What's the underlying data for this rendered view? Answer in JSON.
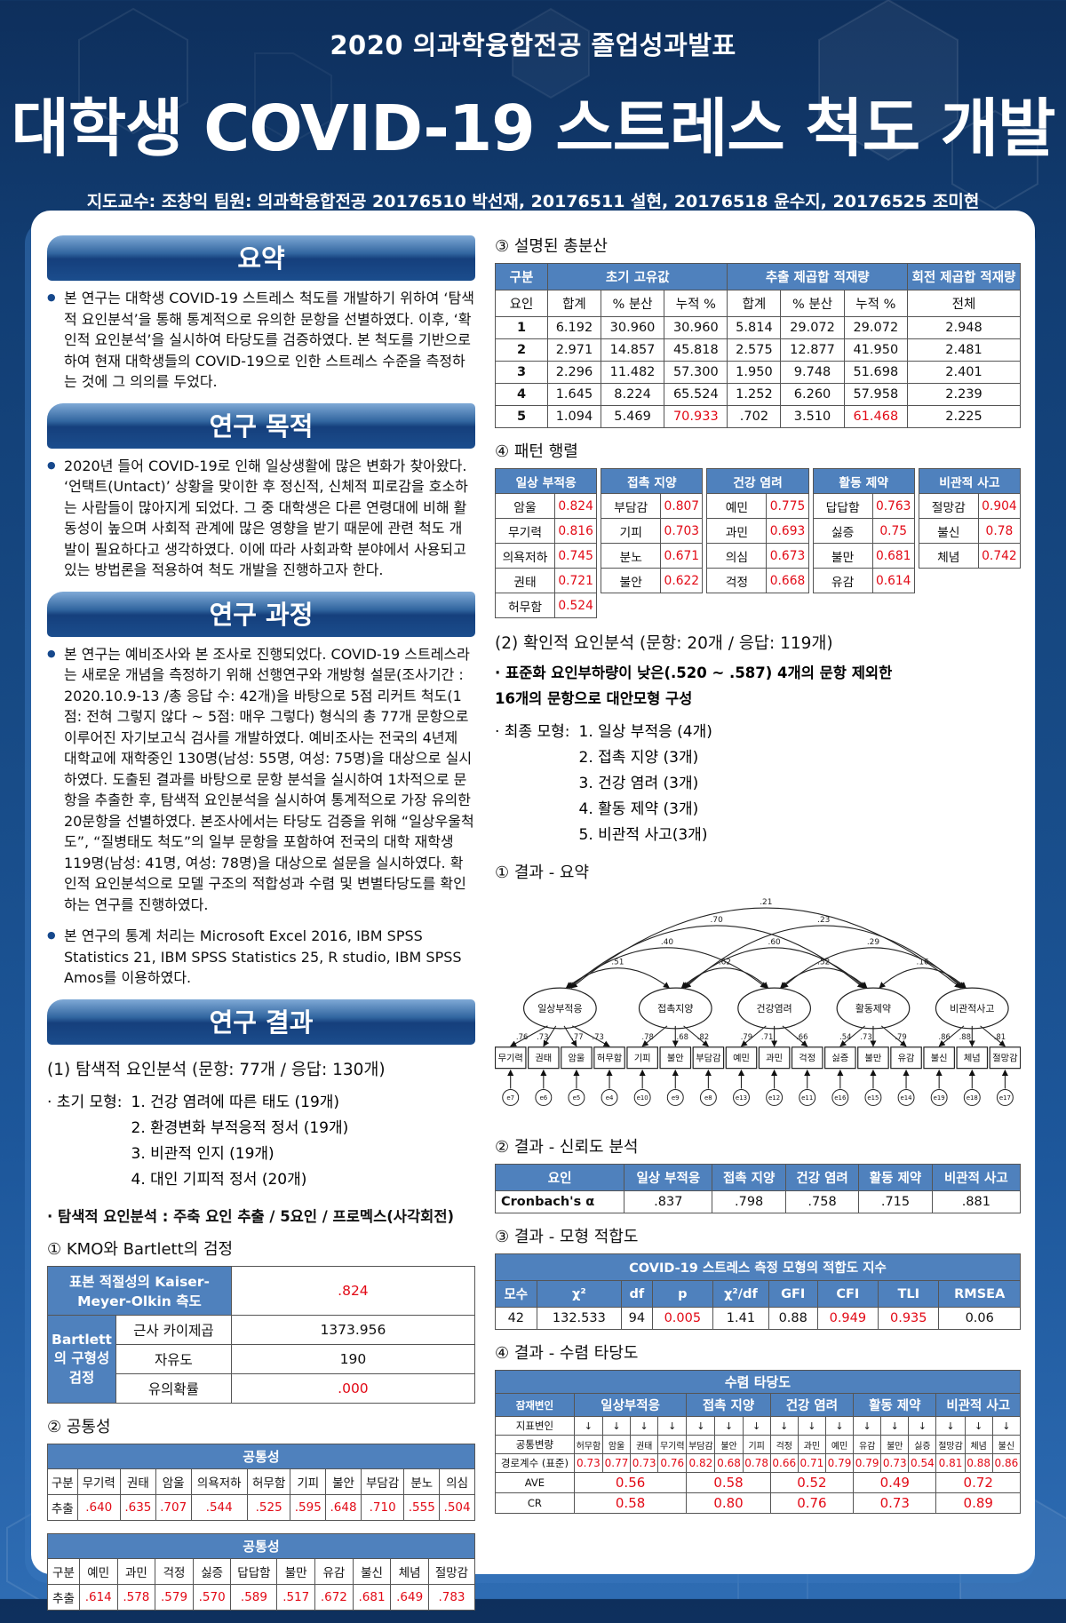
{
  "page": {
    "banner_small": "2020 의과학융합전공 졸업성과발표",
    "title": "대학생 COVID-19 스트레스 척도 개발",
    "authors": "지도교수: 조창익 팀원: 의과학융합전공 20176510 박선재, 20176511 설현, 20176518 윤수지, 20176525 조미현"
  },
  "left": {
    "summary": {
      "title": "요약",
      "text": "본 연구는 대학생 COVID-19 스트레스 척도를 개발하기 위하여 ‘탐색적 요인분석’을 통해 통계적으로 유의한 문항을 선별하였다. 이후, ‘확인적 요인분석’을 실시하여 타당도를 검증하였다. 본 척도를 기반으로 하여 현재 대학생들의 COVID-19으로 인한 스트레스 수준을 측정하는 것에 그 의의를 두었다."
    },
    "purpose": {
      "title": "연구 목적",
      "text": "2020년 들어 COVID-19로 인해 일상생활에 많은 변화가 찾아왔다. ‘언택트(Untact)’ 상황을 맞이한 후 정신적, 신체적 피로감을 호소하는 사람들이 많아지게 되었다. 그 중 대학생은 다른 연령대에 비해 활동성이 높으며 사회적 관계에 많은 영향을 받기 때문에 관련 척도 개발이 필요하다고 생각하였다. 이에 따라 사회과학 분야에서 사용되고 있는 방법론을 적용하여 척도 개발을 진행하고자 한다."
    },
    "process": {
      "title": "연구 과정",
      "text1": "본 연구는 예비조사와 본 조사로 진행되었다. COVID-19 스트레스라는 새로운 개념을 측정하기 위해 선행연구와 개방형 설문(조사기간 : 2020.10.9-13 /총 응답 수: 42개)을 바탕으로 5점 리커트 척도(1점: 전혀 그렇지 않다 ~ 5점: 매우 그렇다) 형식의 총 77개 문항으로 이루어진 자기보고식 검사를 개발하였다. 예비조사는 전국의 4년제 대학교에 재학중인 130명(남성: 55명, 여성: 75명)을 대상으로 실시하였다. 도출된 결과를 바탕으로 문항 분석을 실시하여 1차적으로 문항을 추출한 후, 탐색적 요인분석을 실시하여 통계적으로 가장 유의한 20문항을 선별하였다. 본조사에서는 타당도 검증을 위해 “일상우울척도”, “질병태도 척도”의 일부 문항을 포함하여 전국의 대학 재학생 119명(남성: 41명, 여성: 78명)을 대상으로 설문을 실시하였다. 확인적 요인분석으로 모델 구조의 적합성과 수렴 및 변별타당도를 확인하는 연구를 진행하였다.",
      "text2": "본 연구의 통계 처리는 Microsoft Excel 2016, IBM SPSS Statistics 21, IBM SPSS Statistics 25, R studio, IBM SPSS Amos를 이용하였다."
    },
    "results": {
      "title": "연구 결과",
      "efa_heading": "(1) 탐색적 요인분석 (문항: 77개 / 응답: 130개)",
      "initial_model_label": "· 초기 모형:",
      "initial_model_items": [
        "1. 건강 염려에 따른 태도 (19개)",
        "2. 환경변화 부적응적 정서 (19개)",
        "3. 비관적 인지 (19개)",
        "4. 대인 기피적 정서 (20개)"
      ],
      "efa_method": "· 탐색적 요인분석 : 주축 요인 추출 / 5요인 / 프로멕스(사각회전)",
      "kmo_heading": "① KMO와 Bartlett의 검정",
      "kmo": {
        "row1_label": "표본 적절성의 Kaiser-Meyer-Olkin 측도",
        "row1_value": ".824",
        "group_label": "Bartlett의 구형성 검정",
        "rows": [
          [
            "근사 카이제곱",
            "1373.956"
          ],
          [
            "자유도",
            "190"
          ],
          [
            "유의확률",
            ".000"
          ]
        ]
      },
      "comm_heading": "② 공통성",
      "comm1": {
        "title": "공통성",
        "row_label": "구분",
        "value_label": "추출",
        "items": [
          "무기력",
          "권태",
          "암울",
          "의욕저하",
          "허무함",
          "기피",
          "불안",
          "부담감",
          "분노",
          "의심"
        ],
        "values": [
          ".640",
          ".635",
          ".707",
          ".544",
          ".525",
          ".595",
          ".648",
          ".710",
          ".555",
          ".504"
        ]
      },
      "comm2": {
        "title": "공통성",
        "row_label": "구분",
        "value_label": "추출",
        "items": [
          "예민",
          "과민",
          "걱정",
          "싫증",
          "답답함",
          "불만",
          "유감",
          "불신",
          "체념",
          "절망감"
        ],
        "values": [
          ".614",
          ".578",
          ".579",
          ".570",
          ".589",
          ".517",
          ".672",
          ".681",
          ".649",
          ".783"
        ]
      }
    }
  },
  "right": {
    "variance": {
      "heading": "③ 설명된 총분산",
      "col_groups": [
        "구분",
        "초기 고유값",
        "추출 제곱합 적재량",
        "회전 제곱합 적재량"
      ],
      "sub_headers": [
        "요인",
        "합계",
        "% 분산",
        "누적 %",
        "합계",
        "% 분산",
        "누적 %",
        "전체"
      ],
      "rows": [
        [
          "1",
          "6.192",
          "30.960",
          "30.960",
          "5.814",
          "29.072",
          "29.072",
          "2.948"
        ],
        [
          "2",
          "2.971",
          "14.857",
          "45.818",
          "2.575",
          "12.877",
          "41.950",
          "2.481"
        ],
        [
          "3",
          "2.296",
          "11.482",
          "57.300",
          "1.950",
          "9.748",
          "51.698",
          "2.401"
        ],
        [
          "4",
          "1.645",
          "8.224",
          "65.524",
          "1.252",
          "6.260",
          "57.958",
          "2.239"
        ],
        [
          "5",
          "1.094",
          "5.469",
          "*70.933",
          ".702",
          "3.510",
          "*61.468",
          "2.225"
        ]
      ]
    },
    "pattern": {
      "heading": "④ 패턴 행렬",
      "factors": [
        {
          "name": "일상 부적응",
          "items": [
            [
              "암울",
              "0.824"
            ],
            [
              "무기력",
              "0.816"
            ],
            [
              "의욕저하",
              "0.745"
            ],
            [
              "권태",
              "0.721"
            ],
            [
              "허무함",
              "0.524"
            ]
          ]
        },
        {
          "name": "접촉 지양",
          "items": [
            [
              "부담감",
              "0.807"
            ],
            [
              "기피",
              "0.703"
            ],
            [
              "분노",
              "0.671"
            ],
            [
              "불안",
              "0.622"
            ]
          ]
        },
        {
          "name": "건강 염려",
          "items": [
            [
              "예민",
              "0.775"
            ],
            [
              "과민",
              "0.693"
            ],
            [
              "의심",
              "0.673"
            ],
            [
              "걱정",
              "0.668"
            ]
          ]
        },
        {
          "name": "활동 제약",
          "items": [
            [
              "답답함",
              "0.763"
            ],
            [
              "싫증",
              "0.75"
            ],
            [
              "불만",
              "0.681"
            ],
            [
              "유감",
              "0.614"
            ]
          ]
        },
        {
          "name": "비관적 사고",
          "items": [
            [
              "절망감",
              "0.904"
            ],
            [
              "불신",
              "0.78"
            ],
            [
              "체념",
              "0.742"
            ]
          ]
        }
      ]
    },
    "cfa": {
      "heading": "(2) 확인적 요인분석 (문항: 20개 / 응답: 119개)",
      "note_line1": "· 표준화 요인부하량이 낮은(.520 ~ .587) 4개의 문항 제외한",
      "note_line2": "16개의 문항으로 대안모형 구성",
      "final_model_label": "· 최종 모형:",
      "final_model_items": [
        "1. 일상 부적응 (4개)",
        "2. 접촉 지양 (3개)",
        "3. 건강 염려 (3개)",
        "4. 활동 제약 (3개)",
        "5. 비관적 사고(3개)"
      ]
    },
    "diagram": {
      "heading": "① 결과 - 요약",
      "factors": [
        {
          "name": "일상부적응",
          "items": [
            {
              "label": "무기력",
              "loading": ".76",
              "err": "e7"
            },
            {
              "label": "권태",
              "loading": ".73",
              "err": "e6"
            },
            {
              "label": "암울",
              "loading": ".77",
              "err": "e5"
            },
            {
              "label": "허무함",
              "loading": ".73",
              "err": "e4"
            }
          ]
        },
        {
          "name": "접촉지양",
          "items": [
            {
              "label": "기피",
              "loading": ".78",
              "err": "e10"
            },
            {
              "label": "불안",
              "loading": ".68",
              "err": "e9"
            },
            {
              "label": "부담감",
              "loading": ".82",
              "err": "e8"
            }
          ]
        },
        {
          "name": "건강염려",
          "items": [
            {
              "label": "예민",
              "loading": ".79",
              "err": "e13"
            },
            {
              "label": "과민",
              "loading": ".71",
              "err": "e12"
            },
            {
              "label": "걱정",
              "loading": ".66",
              "err": "e11"
            }
          ]
        },
        {
          "name": "활동제약",
          "items": [
            {
              "label": "싫증",
              "loading": ".54",
              "err": "e16"
            },
            {
              "label": "불만",
              "loading": ".73",
              "err": "e15"
            },
            {
              "label": "유감",
              "loading": ".79",
              "err": "e14"
            }
          ]
        },
        {
          "name": "비관적사고",
          "items": [
            {
              "label": "불신",
              "loading": ".86",
              "err": "e19"
            },
            {
              "label": "체념",
              "loading": ".88",
              "err": "e18"
            },
            {
              "label": "절망감",
              "loading": ".81",
              "err": "e17"
            }
          ]
        }
      ],
      "covariances": [
        {
          "from": 0,
          "to": 4,
          "value": ".21"
        },
        {
          "from": 0,
          "to": 3,
          "value": ".70"
        },
        {
          "from": 1,
          "to": 4,
          "value": ".23"
        },
        {
          "from": 0,
          "to": 2,
          "value": ".40"
        },
        {
          "from": 1,
          "to": 3,
          "value": ".60"
        },
        {
          "from": 2,
          "to": 4,
          "value": ".29"
        },
        {
          "from": 0,
          "to": 1,
          "value": ".51"
        },
        {
          "from": 1,
          "to": 2,
          "value": ".62"
        },
        {
          "from": 2,
          "to": 3,
          "value": ".52"
        },
        {
          "from": 3,
          "to": 4,
          "value": ".16"
        }
      ]
    },
    "reliability": {
      "heading": "② 결과 - 신뢰도 분석",
      "headers": [
        "요인",
        "일상 부적응",
        "접촉 지양",
        "건강 염려",
        "활동 제약",
        "비관적 사고"
      ],
      "row_label": "Cronbach's α",
      "values": [
        ".837",
        ".798",
        ".758",
        ".715",
        ".881"
      ]
    },
    "fit": {
      "heading": "③ 결과 - 모형 적합도",
      "table_title": "COVID-19 스트레스 측정 모형의 적합도 지수",
      "headers": [
        "모수",
        "χ²",
        "df",
        "p",
        "χ²/df",
        "GFI",
        "CFI",
        "TLI",
        "RMSEA"
      ],
      "values": [
        "42",
        "132.533",
        "94",
        "*0.005",
        "1.41",
        "0.88",
        "*0.949",
        "*0.935",
        "0.06"
      ]
    },
    "convergent": {
      "heading": "④ 결과 - 수렴 타당도",
      "table_title": "수렴 타당도",
      "row_labels": [
        "잠재변인",
        "지표변인",
        "공통변량",
        "경로계수 (표준)",
        "AVE",
        "CR"
      ],
      "factors": [
        "일상부적응",
        "접촉 지양",
        "건강 염려",
        "활동 제약",
        "비관적 사고"
      ],
      "spans": [
        4,
        3,
        3,
        3,
        3
      ],
      "indicator_arrow": "↓",
      "common_vars": [
        "허무함",
        "암울",
        "권태",
        "무기력",
        "부담감",
        "불안",
        "기피",
        "걱정",
        "과민",
        "예민",
        "유감",
        "불만",
        "싫증",
        "절망감",
        "체념",
        "불신"
      ],
      "path_coefs": [
        "0.73",
        "0.77",
        "0.73",
        "0.76",
        "0.82",
        "0.68",
        "0.78",
        "0.66",
        "0.71",
        "0.79",
        "0.79",
        "0.73",
        "0.54",
        "0.81",
        "0.88",
        "0.86"
      ],
      "ave": [
        "0.56",
        "0.58",
        "0.52",
        "0.49",
        "0.72"
      ],
      "cr": [
        "0.58",
        "0.80",
        "0.76",
        "0.73",
        "0.89"
      ]
    },
    "colors": {
      "accent_blue": "#4f81bd",
      "banner_blue": "#1b4d8d",
      "value_red": "#e20a16"
    }
  }
}
